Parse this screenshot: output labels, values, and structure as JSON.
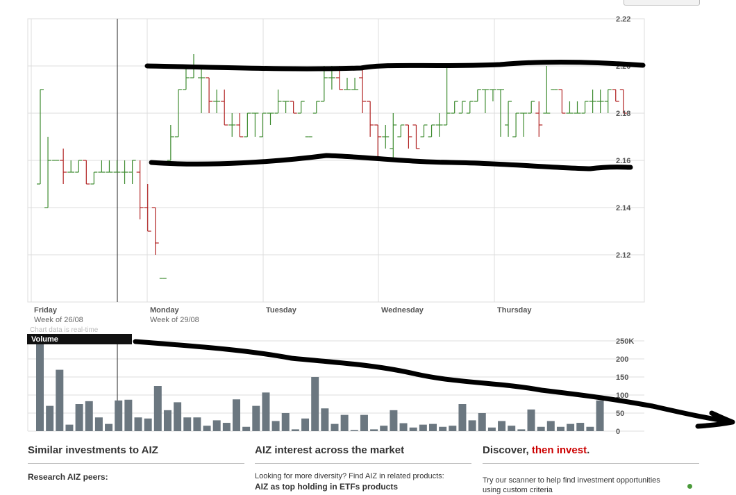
{
  "chart_data": [
    {
      "type": "ohlc",
      "symbol": "AIZ",
      "ylim": [
        2.1,
        2.22
      ],
      "yticks": [
        "2.22",
        "2.20",
        "2.18",
        "2.16",
        "2.14",
        "2.12"
      ],
      "day_labels": [
        "Friday",
        "Monday",
        "Tuesday",
        "Wednesday",
        "Thursday"
      ],
      "week_labels": [
        "Week of 26/08",
        "Week of 29/08"
      ],
      "note": "Chart data is real-time",
      "bars": [
        {
          "o": 2.15,
          "h": 2.19,
          "l": 2.15,
          "c": 2.19
        },
        {
          "o": 2.14,
          "h": 2.17,
          "l": 2.14,
          "c": 2.16
        },
        {
          "o": 2.16,
          "h": 2.16,
          "l": 2.16,
          "c": 2.16
        },
        {
          "o": 2.16,
          "h": 2.165,
          "l": 2.15,
          "c": 2.155
        },
        {
          "o": 2.155,
          "h": 2.16,
          "l": 2.155,
          "c": 2.155
        },
        {
          "o": 2.155,
          "h": 2.16,
          "l": 2.155,
          "c": 2.16
        },
        {
          "o": 2.16,
          "h": 2.16,
          "l": 2.15,
          "c": 2.15
        },
        {
          "o": 2.15,
          "h": 2.155,
          "l": 2.15,
          "c": 2.155
        },
        {
          "o": 2.155,
          "h": 2.16,
          "l": 2.155,
          "c": 2.155
        },
        {
          "o": 2.155,
          "h": 2.16,
          "l": 2.155,
          "c": 2.155
        },
        {
          "o": 2.155,
          "h": 2.16,
          "l": 2.155,
          "c": 2.155
        },
        {
          "o": 2.155,
          "h": 2.16,
          "l": 2.15,
          "c": 2.155
        },
        {
          "o": 2.155,
          "h": 2.16,
          "l": 2.15,
          "c": 2.16
        },
        {
          "o": 2.155,
          "h": 2.16,
          "l": 2.135,
          "c": 2.14
        },
        {
          "o": 2.14,
          "h": 2.15,
          "l": 2.13,
          "c": 2.13
        },
        {
          "o": 2.14,
          "h": 2.14,
          "l": 2.12,
          "c": 2.125
        },
        {
          "o": 2.11,
          "h": 2.11,
          "l": 2.11,
          "c": 2.11
        },
        {
          "o": 2.16,
          "h": 2.175,
          "l": 2.16,
          "c": 2.17
        },
        {
          "o": 2.17,
          "h": 2.19,
          "l": 2.17,
          "c": 2.19
        },
        {
          "o": 2.19,
          "h": 2.2,
          "l": 2.19,
          "c": 2.195
        },
        {
          "o": 2.195,
          "h": 2.205,
          "l": 2.195,
          "c": 2.2
        },
        {
          "o": 2.195,
          "h": 2.2,
          "l": 2.18,
          "c": 2.195
        },
        {
          "o": 2.195,
          "h": 2.195,
          "l": 2.18,
          "c": 2.185
        },
        {
          "o": 2.185,
          "h": 2.19,
          "l": 2.18,
          "c": 2.185
        },
        {
          "o": 2.185,
          "h": 2.19,
          "l": 2.175,
          "c": 2.175
        },
        {
          "o": 2.175,
          "h": 2.18,
          "l": 2.17,
          "c": 2.175
        },
        {
          "o": 2.175,
          "h": 2.18,
          "l": 2.17,
          "c": 2.17
        },
        {
          "o": 2.17,
          "h": 2.18,
          "l": 2.17,
          "c": 2.18
        },
        {
          "o": 2.18,
          "h": 2.18,
          "l": 2.17,
          "c": 2.18
        },
        {
          "o": 2.17,
          "h": 2.18,
          "l": 2.17,
          "c": 2.18
        },
        {
          "o": 2.18,
          "h": 2.18,
          "l": 2.175,
          "c": 2.18
        },
        {
          "o": 2.18,
          "h": 2.19,
          "l": 2.18,
          "c": 2.185
        },
        {
          "o": 2.185,
          "h": 2.185,
          "l": 2.18,
          "c": 2.185
        },
        {
          "o": 2.185,
          "h": 2.185,
          "l": 2.18,
          "c": 2.18
        },
        {
          "o": 2.18,
          "h": 2.185,
          "l": 2.18,
          "c": 2.185
        },
        {
          "o": 2.17,
          "h": 2.17,
          "l": 2.17,
          "c": 2.17
        },
        {
          "o": 2.18,
          "h": 2.185,
          "l": 2.18,
          "c": 2.185
        },
        {
          "o": 2.185,
          "h": 2.2,
          "l": 2.185,
          "c": 2.195
        },
        {
          "o": 2.195,
          "h": 2.2,
          "l": 2.19,
          "c": 2.195
        },
        {
          "o": 2.195,
          "h": 2.2,
          "l": 2.19,
          "c": 2.19
        },
        {
          "o": 2.19,
          "h": 2.195,
          "l": 2.19,
          "c": 2.19
        },
        {
          "o": 2.19,
          "h": 2.195,
          "l": 2.19,
          "c": 2.19
        },
        {
          "o": 2.195,
          "h": 2.2,
          "l": 2.18,
          "c": 2.185
        },
        {
          "o": 2.185,
          "h": 2.185,
          "l": 2.17,
          "c": 2.175
        },
        {
          "o": 2.175,
          "h": 2.175,
          "l": 2.16,
          "c": 2.17
        },
        {
          "o": 2.17,
          "h": 2.175,
          "l": 2.165,
          "c": 2.17
        },
        {
          "o": 2.165,
          "h": 2.18,
          "l": 2.16,
          "c": 2.175
        },
        {
          "o": 2.17,
          "h": 2.175,
          "l": 2.17,
          "c": 2.175
        },
        {
          "o": 2.175,
          "h": 2.175,
          "l": 2.165,
          "c": 2.17
        },
        {
          "o": 2.175,
          "h": 2.175,
          "l": 2.165,
          "c": 2.165
        },
        {
          "o": 2.17,
          "h": 2.175,
          "l": 2.17,
          "c": 2.175
        },
        {
          "o": 2.17,
          "h": 2.175,
          "l": 2.17,
          "c": 2.175
        },
        {
          "o": 2.175,
          "h": 2.18,
          "l": 2.17,
          "c": 2.175
        },
        {
          "o": 2.175,
          "h": 2.2,
          "l": 2.175,
          "c": 2.18
        },
        {
          "o": 2.18,
          "h": 2.185,
          "l": 2.18,
          "c": 2.185
        },
        {
          "o": 2.18,
          "h": 2.185,
          "l": 2.18,
          "c": 2.185
        },
        {
          "o": 2.18,
          "h": 2.185,
          "l": 2.18,
          "c": 2.185
        },
        {
          "o": 2.185,
          "h": 2.19,
          "l": 2.185,
          "c": 2.19
        },
        {
          "o": 2.19,
          "h": 2.19,
          "l": 2.18,
          "c": 2.19
        },
        {
          "o": 2.19,
          "h": 2.19,
          "l": 2.185,
          "c": 2.19
        },
        {
          "o": 2.19,
          "h": 2.19,
          "l": 2.17,
          "c": 2.19
        },
        {
          "o": 2.175,
          "h": 2.185,
          "l": 2.17,
          "c": 2.185
        },
        {
          "o": 2.17,
          "h": 2.18,
          "l": 2.17,
          "c": 2.18
        },
        {
          "o": 2.18,
          "h": 2.18,
          "l": 2.17,
          "c": 2.18
        },
        {
          "o": 2.18,
          "h": 2.185,
          "l": 2.18,
          "c": 2.185
        },
        {
          "o": 2.18,
          "h": 2.185,
          "l": 2.17,
          "c": 2.175
        },
        {
          "o": 2.18,
          "h": 2.2,
          "l": 2.18,
          "c": 2.18
        },
        {
          "o": 2.19,
          "h": 2.19,
          "l": 2.19,
          "c": 2.19
        },
        {
          "o": 2.19,
          "h": 2.19,
          "l": 2.18,
          "c": 2.18
        },
        {
          "o": 2.18,
          "h": 2.185,
          "l": 2.18,
          "c": 2.18
        },
        {
          "o": 2.18,
          "h": 2.185,
          "l": 2.18,
          "c": 2.18
        },
        {
          "o": 2.18,
          "h": 2.185,
          "l": 2.18,
          "c": 2.185
        },
        {
          "o": 2.185,
          "h": 2.19,
          "l": 2.18,
          "c": 2.185
        },
        {
          "o": 2.185,
          "h": 2.19,
          "l": 2.18,
          "c": 2.185
        },
        {
          "o": 2.185,
          "h": 2.19,
          "l": 2.18,
          "c": 2.19
        },
        {
          "o": 2.19,
          "h": 2.19,
          "l": 2.185,
          "c": 2.185
        },
        {
          "o": 2.19,
          "h": 2.19,
          "l": 2.18,
          "c": 2.18
        }
      ]
    },
    {
      "type": "bar",
      "title": "Volume",
      "ylim": [
        0,
        250000
      ],
      "yticks": [
        "250K",
        "200",
        "150",
        "100",
        "50",
        "0"
      ],
      "values": [
        250000,
        70000,
        170000,
        18000,
        75000,
        83000,
        38000,
        20000,
        85000,
        87000,
        38000,
        35000,
        125000,
        58000,
        80000,
        38000,
        38000,
        15000,
        30000,
        23000,
        88000,
        12000,
        70000,
        107000,
        28000,
        50000,
        5000,
        35000,
        150000,
        63000,
        20000,
        45000,
        3000,
        45000,
        5000,
        15000,
        58000,
        22000,
        10000,
        18000,
        20000,
        12000,
        15000,
        75000,
        30000,
        50000,
        10000,
        28000,
        15000,
        5000,
        60000,
        12000,
        28000,
        12000,
        20000,
        23000,
        12000,
        85000
      ]
    }
  ],
  "sections": [
    {
      "title": "Similar investments to AIZ",
      "line1": "Research AIZ peers:",
      "line2": ""
    },
    {
      "title": "AIZ interest across the market",
      "line1": "Looking for more diversity? Find AIZ in related products:",
      "line2": "AIZ as top holding in ETFs products"
    },
    {
      "title_main": "Discover, ",
      "title_accent": "then invest",
      "title_end": ".",
      "line1": "Try our scanner to help find investment opportunities",
      "line2": "using custom criteria"
    }
  ],
  "colors": {
    "up": "#3c8a2e",
    "down": "#b02020",
    "volume": "#6b7780",
    "grid": "#dcdcdc"
  }
}
